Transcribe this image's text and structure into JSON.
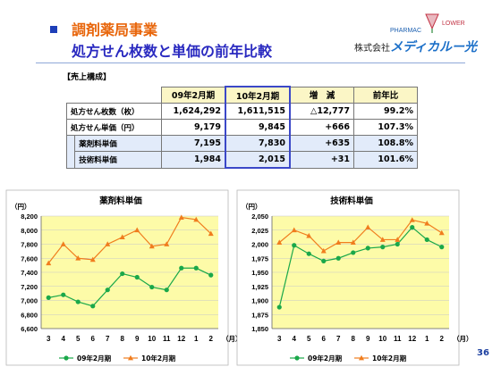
{
  "header": {
    "section_title": "調剤薬局事業",
    "main_title": "処方せん枚数と単価の前年比較"
  },
  "logo": {
    "text_left": "PHARMAC",
    "text_right": "LOWER",
    "company_prefix": "株式会社",
    "company_brand": "メディカルー光"
  },
  "sales": {
    "heading": "【売上構成】",
    "columns": [
      "09年2月期",
      "10年2月期",
      "増　減",
      "前年比"
    ],
    "rows": [
      {
        "label": "処方せん枚数（枚）",
        "values": [
          "1,624,292",
          "1,611,515",
          "△12,777",
          "99.2%"
        ]
      },
      {
        "label": "処方せん単価（円）",
        "values": [
          "9,179",
          "9,845",
          "+666",
          "107.3%"
        ]
      },
      {
        "label": "薬剤料単価",
        "values": [
          "7,195",
          "7,830",
          "+635",
          "108.8%"
        ]
      },
      {
        "label": "技術料単価",
        "values": [
          "1,984",
          "2,015",
          "+31",
          "101.6%"
        ]
      }
    ]
  },
  "chart_data": [
    {
      "type": "line",
      "title": "薬剤料単価",
      "ylabel": "（円）",
      "xlabel": "（月）",
      "categories": [
        "3",
        "4",
        "5",
        "6",
        "7",
        "8",
        "9",
        "10",
        "11",
        "12",
        "1",
        "2"
      ],
      "ylim": [
        6600,
        8200
      ],
      "yticks": [
        "8,200",
        "8,000",
        "7,800",
        "7,600",
        "7,400",
        "7,200",
        "7,000",
        "6,800",
        "6,600"
      ],
      "series": [
        {
          "name": "09年2月期",
          "color": "#1aa84a",
          "marker": "circle",
          "values": [
            7040,
            7080,
            6980,
            6920,
            7150,
            7380,
            7330,
            7190,
            7150,
            7460,
            7460,
            7360
          ]
        },
        {
          "name": "10年2月期",
          "color": "#f07d1e",
          "marker": "triangle",
          "values": [
            7530,
            7800,
            7600,
            7580,
            7800,
            7900,
            8000,
            7770,
            7800,
            8180,
            8150,
            7950
          ]
        }
      ]
    },
    {
      "type": "line",
      "title": "技術料単価",
      "ylabel": "（円）",
      "xlabel": "（月）",
      "categories": [
        "3",
        "4",
        "5",
        "6",
        "7",
        "8",
        "9",
        "10",
        "11",
        "12",
        "1",
        "2"
      ],
      "ylim": [
        1850,
        2050
      ],
      "yticks": [
        "2,050",
        "2,025",
        "2,000",
        "1,975",
        "1,950",
        "1,925",
        "1,900",
        "1,875",
        "1,850"
      ],
      "series": [
        {
          "name": "09年2月期",
          "color": "#1aa84a",
          "marker": "circle",
          "values": [
            1888,
            1998,
            1983,
            1970,
            1975,
            1985,
            1993,
            1995,
            2000,
            2030,
            2008,
            1995
          ]
        },
        {
          "name": "10年2月期",
          "color": "#f07d1e",
          "marker": "triangle",
          "values": [
            2003,
            2025,
            2015,
            1988,
            2003,
            2003,
            2030,
            2008,
            2008,
            2043,
            2037,
            2020
          ]
        }
      ]
    }
  ],
  "page": {
    "number": "36"
  }
}
